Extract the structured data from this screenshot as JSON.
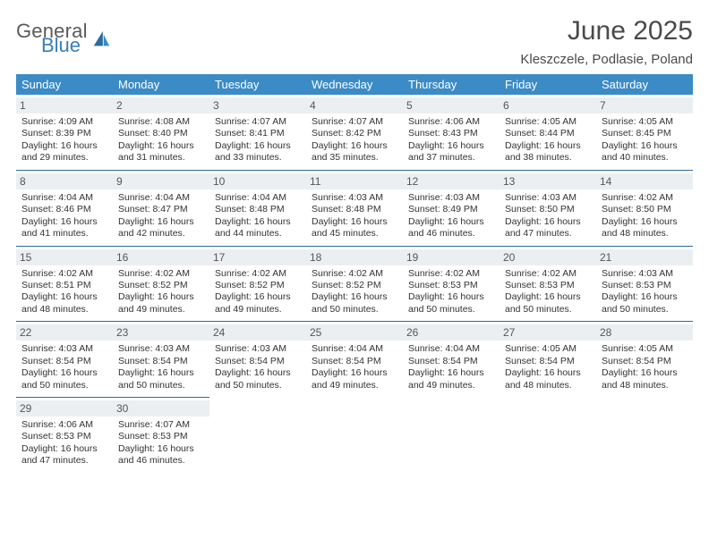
{
  "logo": {
    "word1": "General",
    "word2": "Blue"
  },
  "title": "June 2025",
  "location": "Kleszczele, Podlasie, Poland",
  "colors": {
    "header_bg": "#3b8bc6",
    "header_text": "#ffffff",
    "row_divider": "#2f6aa0",
    "daynum_bg": "#eceff1",
    "logo_gray": "#5a5a5a",
    "logo_blue": "#3a7db8"
  },
  "typography": {
    "title_fontsize": 30,
    "location_fontsize": 15,
    "dayhead_fontsize": 13,
    "cell_fontsize": 10.5
  },
  "weekdays": [
    "Sunday",
    "Monday",
    "Tuesday",
    "Wednesday",
    "Thursday",
    "Friday",
    "Saturday"
  ],
  "days": [
    {
      "n": "1",
      "sunrise": "Sunrise: 4:09 AM",
      "sunset": "Sunset: 8:39 PM",
      "d1": "Daylight: 16 hours",
      "d2": "and 29 minutes."
    },
    {
      "n": "2",
      "sunrise": "Sunrise: 4:08 AM",
      "sunset": "Sunset: 8:40 PM",
      "d1": "Daylight: 16 hours",
      "d2": "and 31 minutes."
    },
    {
      "n": "3",
      "sunrise": "Sunrise: 4:07 AM",
      "sunset": "Sunset: 8:41 PM",
      "d1": "Daylight: 16 hours",
      "d2": "and 33 minutes."
    },
    {
      "n": "4",
      "sunrise": "Sunrise: 4:07 AM",
      "sunset": "Sunset: 8:42 PM",
      "d1": "Daylight: 16 hours",
      "d2": "and 35 minutes."
    },
    {
      "n": "5",
      "sunrise": "Sunrise: 4:06 AM",
      "sunset": "Sunset: 8:43 PM",
      "d1": "Daylight: 16 hours",
      "d2": "and 37 minutes."
    },
    {
      "n": "6",
      "sunrise": "Sunrise: 4:05 AM",
      "sunset": "Sunset: 8:44 PM",
      "d1": "Daylight: 16 hours",
      "d2": "and 38 minutes."
    },
    {
      "n": "7",
      "sunrise": "Sunrise: 4:05 AM",
      "sunset": "Sunset: 8:45 PM",
      "d1": "Daylight: 16 hours",
      "d2": "and 40 minutes."
    },
    {
      "n": "8",
      "sunrise": "Sunrise: 4:04 AM",
      "sunset": "Sunset: 8:46 PM",
      "d1": "Daylight: 16 hours",
      "d2": "and 41 minutes."
    },
    {
      "n": "9",
      "sunrise": "Sunrise: 4:04 AM",
      "sunset": "Sunset: 8:47 PM",
      "d1": "Daylight: 16 hours",
      "d2": "and 42 minutes."
    },
    {
      "n": "10",
      "sunrise": "Sunrise: 4:04 AM",
      "sunset": "Sunset: 8:48 PM",
      "d1": "Daylight: 16 hours",
      "d2": "and 44 minutes."
    },
    {
      "n": "11",
      "sunrise": "Sunrise: 4:03 AM",
      "sunset": "Sunset: 8:48 PM",
      "d1": "Daylight: 16 hours",
      "d2": "and 45 minutes."
    },
    {
      "n": "12",
      "sunrise": "Sunrise: 4:03 AM",
      "sunset": "Sunset: 8:49 PM",
      "d1": "Daylight: 16 hours",
      "d2": "and 46 minutes."
    },
    {
      "n": "13",
      "sunrise": "Sunrise: 4:03 AM",
      "sunset": "Sunset: 8:50 PM",
      "d1": "Daylight: 16 hours",
      "d2": "and 47 minutes."
    },
    {
      "n": "14",
      "sunrise": "Sunrise: 4:02 AM",
      "sunset": "Sunset: 8:50 PM",
      "d1": "Daylight: 16 hours",
      "d2": "and 48 minutes."
    },
    {
      "n": "15",
      "sunrise": "Sunrise: 4:02 AM",
      "sunset": "Sunset: 8:51 PM",
      "d1": "Daylight: 16 hours",
      "d2": "and 48 minutes."
    },
    {
      "n": "16",
      "sunrise": "Sunrise: 4:02 AM",
      "sunset": "Sunset: 8:52 PM",
      "d1": "Daylight: 16 hours",
      "d2": "and 49 minutes."
    },
    {
      "n": "17",
      "sunrise": "Sunrise: 4:02 AM",
      "sunset": "Sunset: 8:52 PM",
      "d1": "Daylight: 16 hours",
      "d2": "and 49 minutes."
    },
    {
      "n": "18",
      "sunrise": "Sunrise: 4:02 AM",
      "sunset": "Sunset: 8:52 PM",
      "d1": "Daylight: 16 hours",
      "d2": "and 50 minutes."
    },
    {
      "n": "19",
      "sunrise": "Sunrise: 4:02 AM",
      "sunset": "Sunset: 8:53 PM",
      "d1": "Daylight: 16 hours",
      "d2": "and 50 minutes."
    },
    {
      "n": "20",
      "sunrise": "Sunrise: 4:02 AM",
      "sunset": "Sunset: 8:53 PM",
      "d1": "Daylight: 16 hours",
      "d2": "and 50 minutes."
    },
    {
      "n": "21",
      "sunrise": "Sunrise: 4:03 AM",
      "sunset": "Sunset: 8:53 PM",
      "d1": "Daylight: 16 hours",
      "d2": "and 50 minutes."
    },
    {
      "n": "22",
      "sunrise": "Sunrise: 4:03 AM",
      "sunset": "Sunset: 8:54 PM",
      "d1": "Daylight: 16 hours",
      "d2": "and 50 minutes."
    },
    {
      "n": "23",
      "sunrise": "Sunrise: 4:03 AM",
      "sunset": "Sunset: 8:54 PM",
      "d1": "Daylight: 16 hours",
      "d2": "and 50 minutes."
    },
    {
      "n": "24",
      "sunrise": "Sunrise: 4:03 AM",
      "sunset": "Sunset: 8:54 PM",
      "d1": "Daylight: 16 hours",
      "d2": "and 50 minutes."
    },
    {
      "n": "25",
      "sunrise": "Sunrise: 4:04 AM",
      "sunset": "Sunset: 8:54 PM",
      "d1": "Daylight: 16 hours",
      "d2": "and 49 minutes."
    },
    {
      "n": "26",
      "sunrise": "Sunrise: 4:04 AM",
      "sunset": "Sunset: 8:54 PM",
      "d1": "Daylight: 16 hours",
      "d2": "and 49 minutes."
    },
    {
      "n": "27",
      "sunrise": "Sunrise: 4:05 AM",
      "sunset": "Sunset: 8:54 PM",
      "d1": "Daylight: 16 hours",
      "d2": "and 48 minutes."
    },
    {
      "n": "28",
      "sunrise": "Sunrise: 4:05 AM",
      "sunset": "Sunset: 8:54 PM",
      "d1": "Daylight: 16 hours",
      "d2": "and 48 minutes."
    },
    {
      "n": "29",
      "sunrise": "Sunrise: 4:06 AM",
      "sunset": "Sunset: 8:53 PM",
      "d1": "Daylight: 16 hours",
      "d2": "and 47 minutes."
    },
    {
      "n": "30",
      "sunrise": "Sunrise: 4:07 AM",
      "sunset": "Sunset: 8:53 PM",
      "d1": "Daylight: 16 hours",
      "d2": "and 46 minutes."
    }
  ]
}
